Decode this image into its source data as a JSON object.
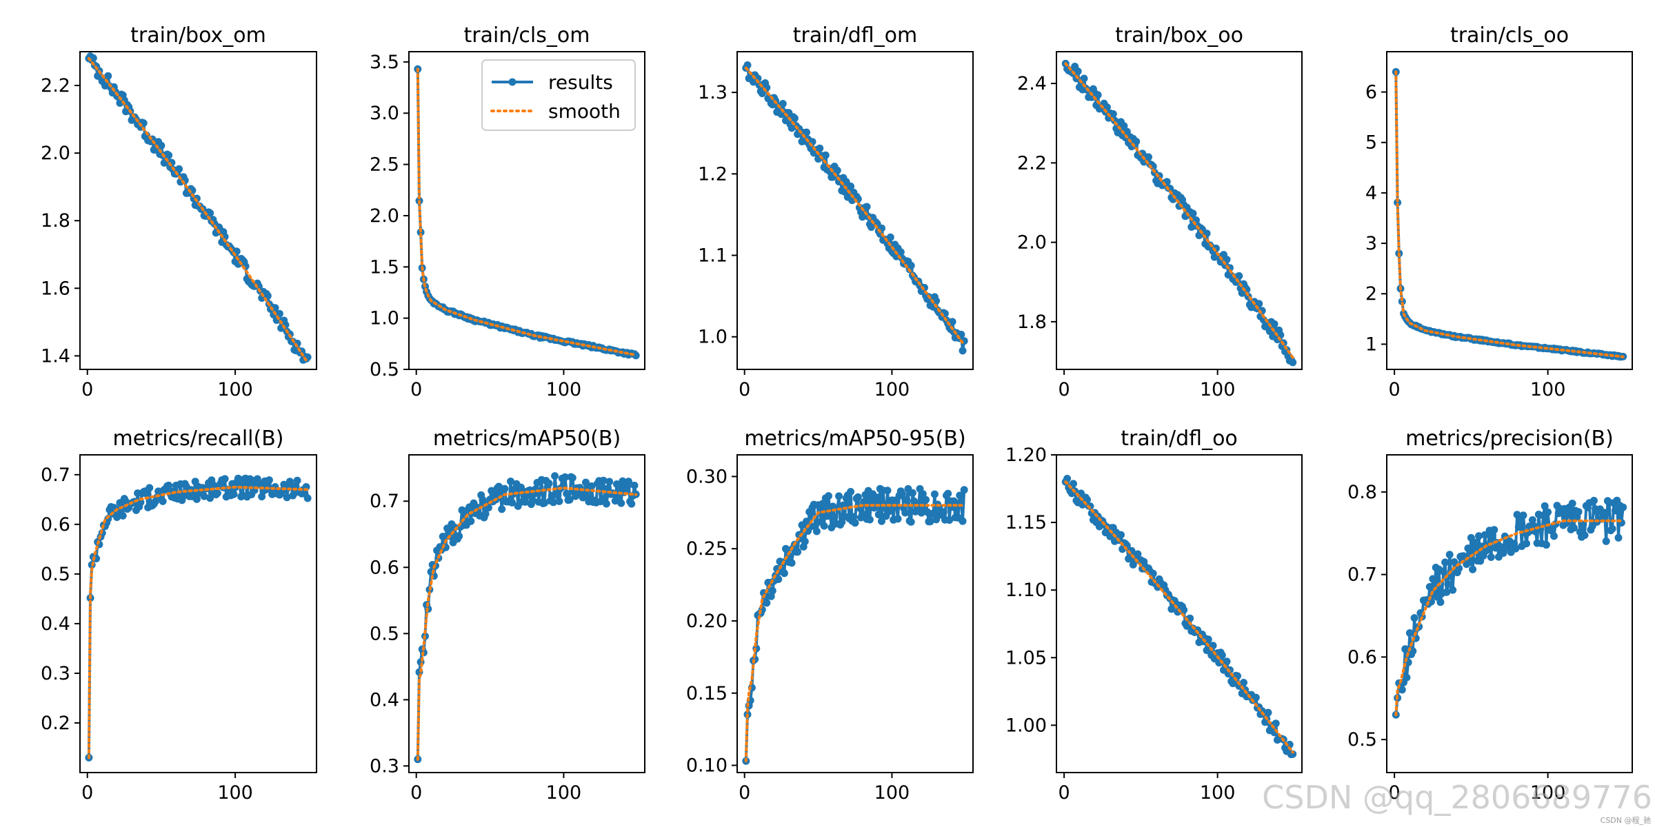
{
  "chart_data": [
    {
      "type": "line",
      "title": "train/box_om",
      "xlim": [
        -5,
        155
      ],
      "ylim": [
        1.36,
        2.3
      ],
      "yticks": [
        1.4,
        1.6,
        1.8,
        2.0,
        2.2
      ],
      "yfmt": 1,
      "xticks": [
        0,
        100
      ],
      "curve": {
        "kind": "decay",
        "start": 2.28,
        "end": 1.38,
        "k": 0,
        "slope": 0.9,
        "noise": 0.022
      }
    },
    {
      "type": "line",
      "title": "train/cls_om",
      "xlim": [
        -5,
        155
      ],
      "ylim": [
        0.5,
        3.6
      ],
      "yticks": [
        0.5,
        1.0,
        1.5,
        2.0,
        2.5,
        3.0,
        3.5
      ],
      "yfmt": 1,
      "xticks": [
        0,
        100
      ],
      "legend": [
        "results",
        "smooth"
      ],
      "curve": {
        "kind": "drop",
        "points": [
          [
            1,
            3.43
          ],
          [
            2,
            2.15
          ],
          [
            3,
            1.83
          ],
          [
            4,
            1.5
          ],
          [
            5,
            1.38
          ],
          [
            6,
            1.3
          ],
          [
            8,
            1.22
          ],
          [
            10,
            1.17
          ],
          [
            20,
            1.08
          ],
          [
            40,
            0.98
          ],
          [
            80,
            0.83
          ],
          [
            120,
            0.72
          ],
          [
            149,
            0.64
          ]
        ],
        "noise": 0.012
      }
    },
    {
      "type": "line",
      "title": "train/dfl_om",
      "xlim": [
        -5,
        155
      ],
      "ylim": [
        0.96,
        1.35
      ],
      "yticks": [
        1.0,
        1.1,
        1.2,
        1.3
      ],
      "yfmt": 1,
      "xticks": [
        0,
        100
      ],
      "curve": {
        "kind": "decay",
        "start": 1.33,
        "end": 0.99,
        "k": 0,
        "slope": 0.34,
        "noise": 0.01
      }
    },
    {
      "type": "line",
      "title": "train/box_oo",
      "xlim": [
        -5,
        155
      ],
      "ylim": [
        1.68,
        2.48
      ],
      "yticks": [
        1.8,
        2.0,
        2.2,
        2.4
      ],
      "yfmt": 1,
      "xticks": [
        0,
        100
      ],
      "curve": {
        "kind": "decay",
        "start": 2.45,
        "end": 1.71,
        "k": 0,
        "slope": 0.74,
        "noise": 0.02
      }
    },
    {
      "type": "line",
      "title": "train/cls_oo",
      "xlim": [
        -5,
        155
      ],
      "ylim": [
        0.5,
        6.8
      ],
      "yticks": [
        1,
        2,
        3,
        4,
        5,
        6
      ],
      "yfmt": 0,
      "xticks": [
        0,
        100
      ],
      "curve": {
        "kind": "drop",
        "points": [
          [
            1,
            6.4
          ],
          [
            2,
            3.8
          ],
          [
            3,
            2.8
          ],
          [
            4,
            2.1
          ],
          [
            5,
            1.85
          ],
          [
            6,
            1.6
          ],
          [
            8,
            1.5
          ],
          [
            10,
            1.42
          ],
          [
            20,
            1.27
          ],
          [
            40,
            1.15
          ],
          [
            80,
            0.98
          ],
          [
            120,
            0.85
          ],
          [
            149,
            0.75
          ]
        ],
        "noise": 0.015
      }
    },
    {
      "type": "line",
      "title": "metrics/recall(B)",
      "xlim": [
        -5,
        155
      ],
      "ylim": [
        0.1,
        0.74
      ],
      "yticks": [
        0.2,
        0.3,
        0.4,
        0.5,
        0.6,
        0.7
      ],
      "yfmt": 1,
      "xticks": [
        0,
        100
      ],
      "curve": {
        "kind": "rise",
        "points": [
          [
            1,
            0.13
          ],
          [
            2,
            0.46
          ],
          [
            3,
            0.51
          ],
          [
            5,
            0.54
          ],
          [
            8,
            0.57
          ],
          [
            12,
            0.61
          ],
          [
            20,
            0.63
          ],
          [
            35,
            0.65
          ],
          [
            60,
            0.665
          ],
          [
            100,
            0.675
          ],
          [
            149,
            0.67
          ]
        ],
        "noise": 0.02
      }
    },
    {
      "type": "line",
      "title": "metrics/mAP50(B)",
      "xlim": [
        -5,
        155
      ],
      "ylim": [
        0.29,
        0.77
      ],
      "yticks": [
        0.3,
        0.4,
        0.5,
        0.6,
        0.7
      ],
      "yfmt": 1,
      "xticks": [
        0,
        100
      ],
      "curve": {
        "kind": "rise",
        "points": [
          [
            1,
            0.31
          ],
          [
            2,
            0.43
          ],
          [
            3,
            0.44
          ],
          [
            5,
            0.48
          ],
          [
            8,
            0.55
          ],
          [
            12,
            0.6
          ],
          [
            20,
            0.64
          ],
          [
            35,
            0.68
          ],
          [
            60,
            0.71
          ],
          [
            100,
            0.72
          ],
          [
            149,
            0.71
          ]
        ],
        "noise": 0.02
      }
    },
    {
      "type": "line",
      "title": "metrics/mAP50-95(B)",
      "xlim": [
        -5,
        155
      ],
      "ylim": [
        0.095,
        0.315
      ],
      "yticks": [
        0.1,
        0.15,
        0.2,
        0.25,
        0.3
      ],
      "yfmt": 2,
      "xticks": [
        0,
        100
      ],
      "curve": {
        "kind": "rise",
        "points": [
          [
            1,
            0.103
          ],
          [
            2,
            0.14
          ],
          [
            3,
            0.15
          ],
          [
            5,
            0.16
          ],
          [
            8,
            0.19
          ],
          [
            12,
            0.215
          ],
          [
            20,
            0.23
          ],
          [
            35,
            0.255
          ],
          [
            50,
            0.275
          ],
          [
            80,
            0.28
          ],
          [
            149,
            0.28
          ]
        ],
        "noise": 0.012
      }
    },
    {
      "type": "line",
      "title": "train/dfl_oo",
      "xlim": [
        -5,
        155
      ],
      "ylim": [
        0.965,
        1.2
      ],
      "yticks": [
        1.0,
        1.05,
        1.1,
        1.15,
        1.2
      ],
      "yfmt": 2,
      "xticks": [
        0,
        100
      ],
      "curve": {
        "kind": "decay",
        "start": 1.18,
        "end": 0.98,
        "k": 0,
        "slope": 0.2,
        "noise": 0.006
      }
    },
    {
      "type": "line",
      "title": "metrics/precision(B)",
      "xlim": [
        -5,
        155
      ],
      "ylim": [
        0.46,
        0.845
      ],
      "yticks": [
        0.5,
        0.6,
        0.7,
        0.8
      ],
      "yfmt": 1,
      "xticks": [
        0,
        100
      ],
      "curve": {
        "kind": "rise",
        "points": [
          [
            1,
            0.53
          ],
          [
            2,
            0.56
          ],
          [
            4,
            0.57
          ],
          [
            8,
            0.6
          ],
          [
            14,
            0.63
          ],
          [
            25,
            0.68
          ],
          [
            40,
            0.71
          ],
          [
            60,
            0.735
          ],
          [
            80,
            0.75
          ],
          [
            110,
            0.765
          ],
          [
            149,
            0.765
          ]
        ],
        "noise": 0.025
      }
    }
  ],
  "legend": {
    "results": "results",
    "smooth": "smooth"
  },
  "colors": {
    "results": "#1f77b4",
    "smooth": "#ff7f0e"
  },
  "watermark": "CSDN @qq_2806689776",
  "watermark_small": "CSDN @程_驰"
}
